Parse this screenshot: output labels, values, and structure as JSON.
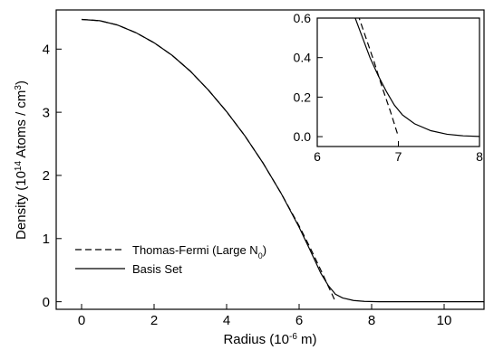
{
  "chart_data": [
    {
      "id": "main",
      "type": "line",
      "xlabel": "Radius (10",
      "xlabel_sup": "-6",
      "xlabel_tail": " m)",
      "ylabel": "Density (10",
      "ylabel_sup": "14",
      "ylabel_mid": " Atoms / cm",
      "ylabel_sup2": "3",
      "ylabel_tail": ")",
      "xlim": [
        -0.7,
        11.1
      ],
      "ylim": [
        -0.12,
        4.62
      ],
      "xticks": [
        0,
        2,
        4,
        6,
        8,
        10
      ],
      "yticks": [
        0,
        1,
        2,
        3,
        4
      ],
      "legend": {
        "placement": "bottom-left",
        "entries": [
          {
            "label": "Thomas-Fermi (Large N",
            "sub": "0",
            "tail": ")",
            "style": "dashed"
          },
          {
            "label": "Basis Set",
            "style": "solid"
          }
        ]
      },
      "series": [
        {
          "name": "Thomas-Fermi (Large N0)",
          "style": "dashed",
          "color": "#000000",
          "x": [
            0,
            0.5,
            1,
            1.5,
            2,
            2.5,
            3,
            3.5,
            4,
            4.5,
            5,
            5.5,
            6,
            6.3,
            6.6,
            6.8,
            6.9,
            7.0
          ],
          "y": [
            4.47,
            4.45,
            4.38,
            4.26,
            4.1,
            3.9,
            3.65,
            3.35,
            3.01,
            2.63,
            2.2,
            1.72,
            1.2,
            0.86,
            0.5,
            0.25,
            0.13,
            0.0
          ]
        },
        {
          "name": "Basis Set",
          "style": "solid",
          "color": "#000000",
          "x": [
            0,
            0.5,
            1,
            1.5,
            2,
            2.5,
            3,
            3.5,
            4,
            4.5,
            5,
            5.5,
            6,
            6.3,
            6.6,
            6.8,
            7.0,
            7.2,
            7.5,
            7.8,
            8.2,
            9,
            10,
            11.1
          ],
          "y": [
            4.47,
            4.45,
            4.38,
            4.26,
            4.1,
            3.9,
            3.65,
            3.35,
            3.01,
            2.63,
            2.2,
            1.72,
            1.18,
            0.82,
            0.45,
            0.26,
            0.12,
            0.06,
            0.02,
            0.005,
            0.0,
            0.0,
            0.0,
            0.0
          ]
        }
      ]
    },
    {
      "id": "inset",
      "type": "line",
      "xlim": [
        6,
        8
      ],
      "ylim": [
        -0.05,
        0.6
      ],
      "xticks": [
        6,
        7,
        8
      ],
      "yticks": [
        0.0,
        0.2,
        0.4,
        0.6
      ],
      "ytick_labels": [
        "0.0",
        "0.2",
        "0.4",
        "0.6"
      ],
      "series": [
        {
          "name": "Thomas-Fermi (Large N0)",
          "style": "dashed",
          "color": "#000000",
          "x": [
            6.5,
            6.6,
            6.7,
            6.8,
            6.9,
            7.0
          ],
          "y": [
            0.62,
            0.5,
            0.38,
            0.25,
            0.13,
            0.0
          ]
        },
        {
          "name": "Basis Set",
          "style": "solid",
          "color": "#000000",
          "x": [
            6.45,
            6.55,
            6.65,
            6.75,
            6.85,
            6.95,
            7.05,
            7.2,
            7.4,
            7.6,
            7.8,
            8.0
          ],
          "y": [
            0.62,
            0.51,
            0.4,
            0.31,
            0.23,
            0.16,
            0.11,
            0.065,
            0.03,
            0.012,
            0.004,
            0.001
          ]
        }
      ]
    }
  ]
}
